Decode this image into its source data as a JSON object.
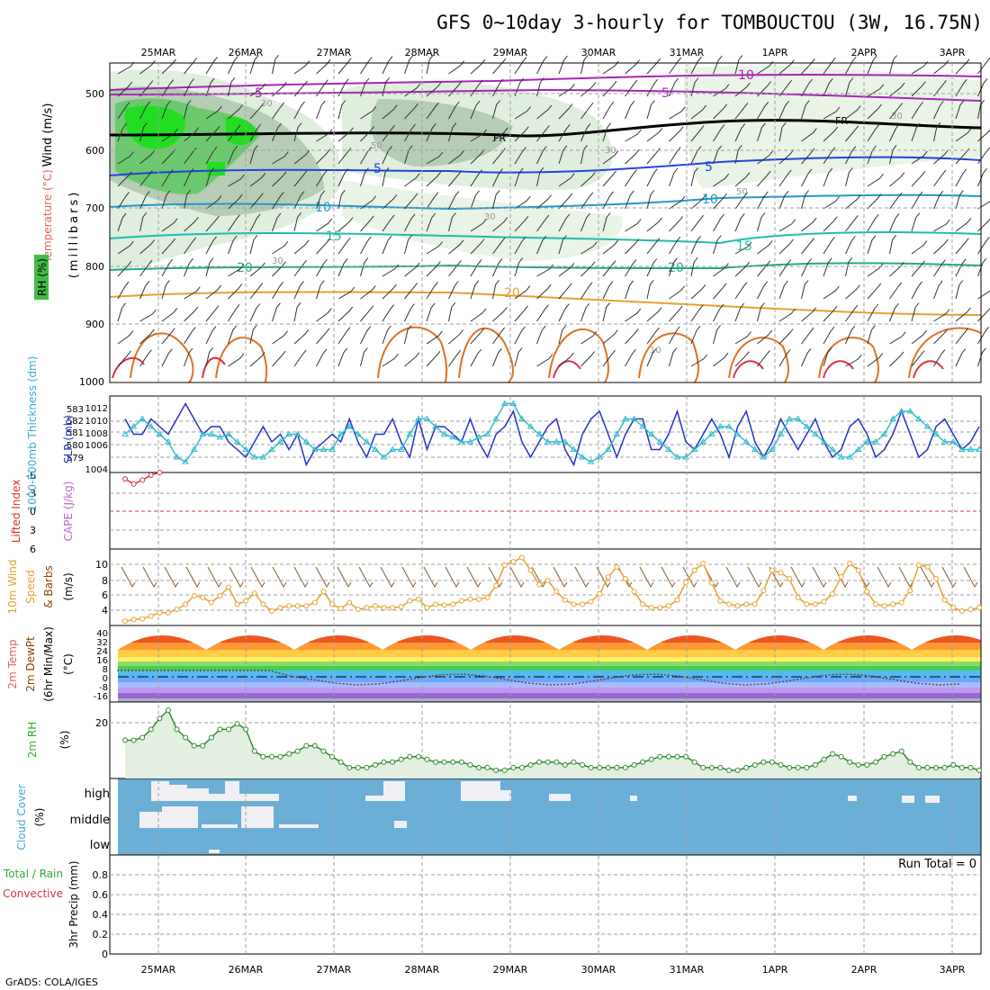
{
  "title": "GFS 0~10day 3-hourly for TOMBOUCTOU (3W, 16.75N)",
  "credit": "GrADS: COLA/IGES",
  "run_total_label": "Run Total = 0",
  "dates": [
    "25MAR",
    "26MAR",
    "27MAR",
    "28MAR",
    "29MAR",
    "30MAR",
    "31MAR",
    "1APR",
    "2APR",
    "3APR"
  ],
  "colors": {
    "line_blue": "#2233cc",
    "line_cyan": "#33bbcc",
    "orange": "#e8a030",
    "red": "#dd3333",
    "green": "#338833",
    "cloud": "#6baed6",
    "grid": "#a0a0a0"
  },
  "panels": {
    "upper": {
      "label_wind": "Wind (m/s)",
      "label_temp": "Temperature (°C)",
      "label_rh": "RH (%)",
      "label_mb": "(millibars)",
      "y_ticks": [
        "500",
        "600",
        "700",
        "800",
        "900",
        "1000"
      ],
      "contour_labels": [
        "-10",
        "-5",
        "-5",
        "FR",
        "FR",
        "5",
        "5",
        "10",
        "10",
        "15",
        "15",
        "20",
        "20",
        "20",
        "30",
        "30",
        "50",
        "30",
        "30",
        "30",
        "50",
        "10"
      ]
    },
    "slp": {
      "label_thick": "1000-500mb Thickness (dm)",
      "label_slp": "SLP (mb)",
      "left_ticks": [
        "583",
        "582",
        "581",
        "580",
        "579"
      ],
      "right_ticks": [
        "1012",
        "1010",
        "1008",
        "1006",
        "1004"
      ],
      "sub": "1004"
    },
    "cape": {
      "label_li": "Lifted Index",
      "label_cape": "CAPE (J/kg)",
      "left_ticks": [
        "-6",
        "-3",
        "0",
        "3",
        "6"
      ]
    },
    "wind10": {
      "label1": "10m Wind",
      "label2": "Speed",
      "label3": "& Barbs",
      "label4": "(m/s)",
      "y_ticks": [
        "10",
        "8",
        "6",
        "4"
      ]
    },
    "temp2m": {
      "label1": "2m Temp",
      "label2": "2m DewPt",
      "label3": "(6hr Min/Max)",
      "label4": "(°C)",
      "y_ticks": [
        "40",
        "32",
        "24",
        "16",
        "8",
        "0",
        "-8",
        "-16"
      ]
    },
    "rh2m": {
      "label1": "2m RH",
      "label2": "(%)",
      "y_ticks": [
        "20"
      ]
    },
    "cloud": {
      "label1": "Cloud Cover",
      "label2": "(%)",
      "levels": [
        "high",
        "middle",
        "low"
      ]
    },
    "precip": {
      "label1": "Total / Rain",
      "label2": "Convective",
      "label3": "3hr Precip (mm)",
      "y_ticks": [
        "0.8",
        "0.6",
        "0.4",
        "0.2",
        "0"
      ]
    }
  },
  "chart_data": [
    {
      "type": "line",
      "name": "SLP",
      "ylabel": "SLP (mb)",
      "ylim": [
        1003,
        1013
      ],
      "values": [
        1010,
        1008,
        1008,
        1010,
        1009,
        1008,
        1010,
        1012,
        1010,
        1008,
        1009,
        1009,
        1007,
        1006,
        1005,
        1007,
        1009,
        1007,
        1008,
        1006,
        1008,
        1004,
        1006,
        1007,
        1008,
        1007,
        1010,
        1007,
        1005,
        1008,
        1008,
        1010,
        1007,
        1005,
        1010,
        1006,
        1009,
        1009,
        1008,
        1007,
        1010,
        1007,
        1005,
        1008,
        1009,
        1011,
        1007,
        1005,
        1007,
        1009,
        1010,
        1006,
        1004,
        1008,
        1010,
        1011,
        1008,
        1005,
        1008,
        1010,
        1010,
        1006,
        1006,
        1008,
        1011,
        1007,
        1006,
        1008,
        1010,
        1008,
        1005,
        1009,
        1011,
        1007,
        1005,
        1007,
        1010,
        1008,
        1006,
        1008,
        1010,
        1007,
        1005,
        1006,
        1009,
        1010,
        1008,
        1005,
        1006,
        1008,
        1011,
        1008,
        1005,
        1006,
        1009,
        1010,
        1008,
        1006,
        1007,
        1009
      ]
    },
    {
      "type": "line",
      "name": "Thickness",
      "ylabel": "1000-500mb Thickness (dm)",
      "ylim": [
        578.5,
        583.5
      ],
      "values": [
        581,
        581.5,
        582,
        581.5,
        581,
        580.5,
        579.5,
        579.2,
        580,
        581,
        581,
        580.8,
        581,
        580.5,
        580,
        579.5,
        579.5,
        580,
        580.5,
        581,
        581,
        580.5,
        580,
        580,
        580,
        581,
        581.5,
        581,
        580.5,
        580,
        579.5,
        580,
        580,
        581,
        582,
        582,
        581.5,
        581,
        580.8,
        580.5,
        580.5,
        580.8,
        581,
        582,
        583,
        583,
        582,
        581.5,
        581,
        580.5,
        580.5,
        580.5,
        580,
        579.5,
        579.2,
        579.5,
        580,
        581,
        582,
        582,
        581.5,
        581,
        580.5,
        580,
        579.5,
        579.5,
        580,
        580.5,
        581,
        581.5,
        581.5,
        581,
        580.5,
        580,
        579.5,
        580,
        581,
        582,
        582,
        581.5,
        581,
        580.5,
        580,
        579.5,
        579.5,
        580,
        580.5,
        580.5,
        581,
        582,
        582.5,
        582.5,
        582,
        581.5,
        581,
        580.5,
        580.5,
        580,
        580,
        580
      ]
    },
    {
      "type": "line",
      "name": "Lifted Index",
      "ylabel": "Lifted Index",
      "ylim": [
        -6,
        6
      ],
      "values": [
        5,
        4.2,
        4.8,
        5.6,
        6
      ]
    },
    {
      "type": "line",
      "name": "10m Wind Speed",
      "ylabel": "(m/s)",
      "ylim": [
        2.5,
        11.5
      ],
      "values": [
        3,
        3.2,
        3.3,
        3.6,
        4,
        4,
        4.4,
        5,
        6,
        5.8,
        5.2,
        6,
        7,
        5,
        5.4,
        6.3,
        5,
        4.2,
        4.6,
        4.8,
        4.8,
        4.8,
        5.2,
        6.5,
        5,
        4.5,
        5.2,
        4.4,
        4.6,
        4.8,
        4.6,
        4.6,
        4.7,
        5.4,
        5.6,
        4.6,
        5,
        4.9,
        5,
        5.4,
        5.6,
        5.6,
        5.8,
        7.2,
        9.6,
        10,
        10.5,
        9,
        7.3,
        7.8,
        6.5,
        5.5,
        5,
        5,
        5.3,
        6.2,
        8.2,
        9.4,
        8,
        6.5,
        5,
        4.6,
        4.6,
        4.8,
        5.5,
        7.6,
        9,
        9.8,
        7.5,
        5.4,
        5,
        4.8,
        5,
        5,
        6.6,
        9,
        8.7,
        8,
        5.8,
        5,
        5,
        5.3,
        6.2,
        8.2,
        9.8,
        9,
        6.5,
        5,
        4.8,
        5,
        5.2,
        6.6,
        9.6,
        9.4,
        8,
        5.5,
        4.6,
        4.2,
        4.4,
        4.6
      ]
    },
    {
      "type": "area",
      "name": "2m RH",
      "ylabel": "(%)",
      "ylim": [
        0,
        28
      ],
      "values": [
        14,
        14,
        15,
        18,
        22,
        25,
        18,
        15,
        12,
        12,
        15,
        18,
        18,
        20,
        18,
        10,
        8,
        8,
        8,
        9,
        10,
        12,
        12,
        10,
        8,
        6,
        4,
        4,
        4,
        5,
        6,
        6,
        7,
        8,
        8,
        7,
        6,
        6,
        6,
        6,
        5,
        4,
        4,
        3,
        3,
        4,
        4,
        5,
        6,
        6,
        6,
        5,
        6,
        5,
        4,
        4,
        4,
        4,
        4,
        5,
        6,
        7,
        8,
        8,
        8,
        8,
        6,
        4,
        4,
        4,
        3,
        3,
        4,
        5,
        6,
        6,
        5,
        4,
        4,
        4,
        5,
        7,
        9,
        8,
        6,
        5,
        5,
        6,
        8,
        9,
        10,
        6,
        4,
        4,
        4,
        4,
        5,
        4,
        4,
        3
      ]
    },
    {
      "type": "bar",
      "name": "Precip",
      "ylabel": "3hr Precip (mm)",
      "ylim": [
        0,
        1
      ],
      "values": []
    }
  ]
}
